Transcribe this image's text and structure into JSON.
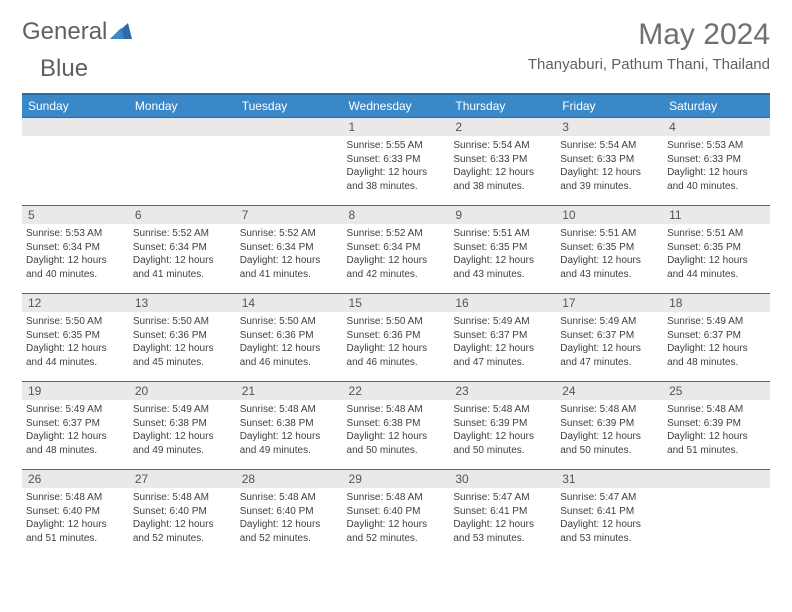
{
  "logo": {
    "text1": "General",
    "text2": "Blue"
  },
  "title": "May 2024",
  "location": "Thanyaburi, Pathum Thani, Thailand",
  "colors": {
    "header_bg": "#3b88c9",
    "header_text": "#ffffff",
    "rule": "#2f6aa8",
    "daynum_bg": "#e9e9e9",
    "text": "#404040",
    "logo_blue": "#3b7fc4",
    "logo_gray": "#606060"
  },
  "day_headers": [
    "Sunday",
    "Monday",
    "Tuesday",
    "Wednesday",
    "Thursday",
    "Friday",
    "Saturday"
  ],
  "weeks": [
    [
      null,
      null,
      null,
      {
        "n": "1",
        "sr": "5:55 AM",
        "ss": "6:33 PM",
        "dl": "12 hours and 38 minutes."
      },
      {
        "n": "2",
        "sr": "5:54 AM",
        "ss": "6:33 PM",
        "dl": "12 hours and 38 minutes."
      },
      {
        "n": "3",
        "sr": "5:54 AM",
        "ss": "6:33 PM",
        "dl": "12 hours and 39 minutes."
      },
      {
        "n": "4",
        "sr": "5:53 AM",
        "ss": "6:33 PM",
        "dl": "12 hours and 40 minutes."
      }
    ],
    [
      {
        "n": "5",
        "sr": "5:53 AM",
        "ss": "6:34 PM",
        "dl": "12 hours and 40 minutes."
      },
      {
        "n": "6",
        "sr": "5:52 AM",
        "ss": "6:34 PM",
        "dl": "12 hours and 41 minutes."
      },
      {
        "n": "7",
        "sr": "5:52 AM",
        "ss": "6:34 PM",
        "dl": "12 hours and 41 minutes."
      },
      {
        "n": "8",
        "sr": "5:52 AM",
        "ss": "6:34 PM",
        "dl": "12 hours and 42 minutes."
      },
      {
        "n": "9",
        "sr": "5:51 AM",
        "ss": "6:35 PM",
        "dl": "12 hours and 43 minutes."
      },
      {
        "n": "10",
        "sr": "5:51 AM",
        "ss": "6:35 PM",
        "dl": "12 hours and 43 minutes."
      },
      {
        "n": "11",
        "sr": "5:51 AM",
        "ss": "6:35 PM",
        "dl": "12 hours and 44 minutes."
      }
    ],
    [
      {
        "n": "12",
        "sr": "5:50 AM",
        "ss": "6:35 PM",
        "dl": "12 hours and 44 minutes."
      },
      {
        "n": "13",
        "sr": "5:50 AM",
        "ss": "6:36 PM",
        "dl": "12 hours and 45 minutes."
      },
      {
        "n": "14",
        "sr": "5:50 AM",
        "ss": "6:36 PM",
        "dl": "12 hours and 46 minutes."
      },
      {
        "n": "15",
        "sr": "5:50 AM",
        "ss": "6:36 PM",
        "dl": "12 hours and 46 minutes."
      },
      {
        "n": "16",
        "sr": "5:49 AM",
        "ss": "6:37 PM",
        "dl": "12 hours and 47 minutes."
      },
      {
        "n": "17",
        "sr": "5:49 AM",
        "ss": "6:37 PM",
        "dl": "12 hours and 47 minutes."
      },
      {
        "n": "18",
        "sr": "5:49 AM",
        "ss": "6:37 PM",
        "dl": "12 hours and 48 minutes."
      }
    ],
    [
      {
        "n": "19",
        "sr": "5:49 AM",
        "ss": "6:37 PM",
        "dl": "12 hours and 48 minutes."
      },
      {
        "n": "20",
        "sr": "5:49 AM",
        "ss": "6:38 PM",
        "dl": "12 hours and 49 minutes."
      },
      {
        "n": "21",
        "sr": "5:48 AM",
        "ss": "6:38 PM",
        "dl": "12 hours and 49 minutes."
      },
      {
        "n": "22",
        "sr": "5:48 AM",
        "ss": "6:38 PM",
        "dl": "12 hours and 50 minutes."
      },
      {
        "n": "23",
        "sr": "5:48 AM",
        "ss": "6:39 PM",
        "dl": "12 hours and 50 minutes."
      },
      {
        "n": "24",
        "sr": "5:48 AM",
        "ss": "6:39 PM",
        "dl": "12 hours and 50 minutes."
      },
      {
        "n": "25",
        "sr": "5:48 AM",
        "ss": "6:39 PM",
        "dl": "12 hours and 51 minutes."
      }
    ],
    [
      {
        "n": "26",
        "sr": "5:48 AM",
        "ss": "6:40 PM",
        "dl": "12 hours and 51 minutes."
      },
      {
        "n": "27",
        "sr": "5:48 AM",
        "ss": "6:40 PM",
        "dl": "12 hours and 52 minutes."
      },
      {
        "n": "28",
        "sr": "5:48 AM",
        "ss": "6:40 PM",
        "dl": "12 hours and 52 minutes."
      },
      {
        "n": "29",
        "sr": "5:48 AM",
        "ss": "6:40 PM",
        "dl": "12 hours and 52 minutes."
      },
      {
        "n": "30",
        "sr": "5:47 AM",
        "ss": "6:41 PM",
        "dl": "12 hours and 53 minutes."
      },
      {
        "n": "31",
        "sr": "5:47 AM",
        "ss": "6:41 PM",
        "dl": "12 hours and 53 minutes."
      },
      null
    ]
  ],
  "labels": {
    "sunrise": "Sunrise:",
    "sunset": "Sunset:",
    "daylight": "Daylight:"
  }
}
